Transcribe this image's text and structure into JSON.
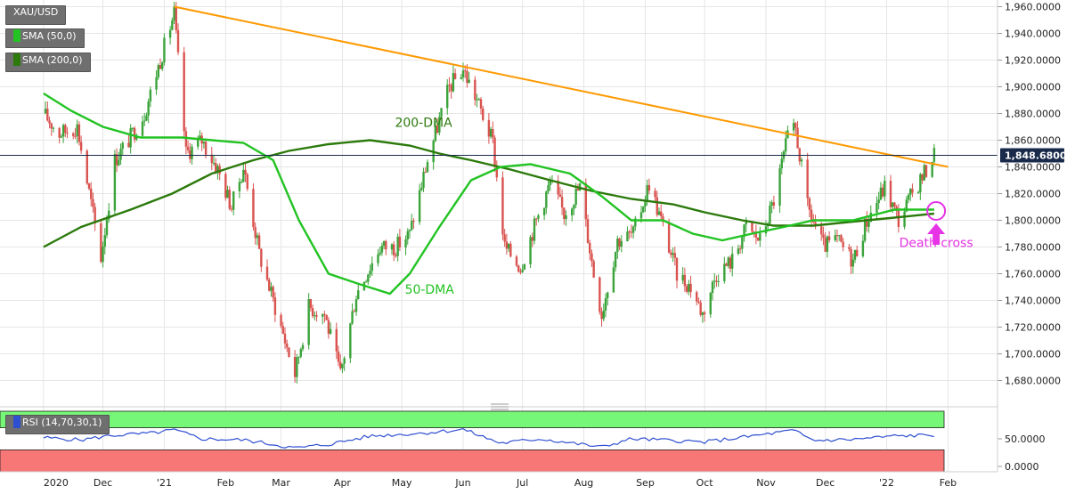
{
  "legend": {
    "symbol": "XAU/USD",
    "sma50": "SMA (50,0)",
    "sma200": "SMA (200,0)",
    "rsi": "RSI (14,70,30,1)"
  },
  "colors": {
    "candle_up": "#3aa33a",
    "candle_down": "#d9534f",
    "sma50": "#22c322",
    "sma200": "#2b7a0b",
    "trendline": "#ff9900",
    "annotation": "#e633e6",
    "rsi_line": "#2f4fd1",
    "rsi_overbought": "#77f777",
    "rsi_oversold": "#f77777",
    "price_tag": "#1a2a4a"
  },
  "chart_data": {
    "type": "candlestick",
    "title": "",
    "price_axis": {
      "range": [
        1665,
        1965
      ],
      "ticks": [
        1680,
        1700,
        1720,
        1740,
        1760,
        1780,
        1800,
        1820,
        1840,
        1860,
        1880,
        1900,
        1920,
        1940,
        1960
      ],
      "tick_labels": [
        "1,680.0000",
        "1,700.0000",
        "1,720.0000",
        "1,740.0000",
        "1,760.0000",
        "1,780.0000",
        "1,800.0000",
        "1,820.0000",
        "1,840.0000",
        "1,860.0000",
        "1,880.0000",
        "1,900.0000",
        "1,920.0000",
        "1,940.0000",
        "1,960.0000"
      ]
    },
    "time_axis": {
      "labels": [
        "2020",
        "Dec",
        "'21",
        "Feb",
        "Mar",
        "Apr",
        "May",
        "Jun",
        "Jul",
        "Aug",
        "Sep",
        "Oct",
        "Nov",
        "Dec",
        "'22",
        "Feb"
      ],
      "dates": [
        "2020-11-01",
        "2020-12-01",
        "2021-01-01",
        "2021-02-01",
        "2021-03-01",
        "2021-04-01",
        "2021-05-01",
        "2021-06-01",
        "2021-07-01",
        "2021-08-01",
        "2021-09-01",
        "2021-10-01",
        "2021-11-01",
        "2021-12-01",
        "2022-01-01",
        "2022-02-01"
      ]
    },
    "current_price": 1848.68,
    "current_price_label": "1,848.6800",
    "price_path": [
      [
        "2020-11-01",
        1880
      ],
      [
        "2020-11-09",
        1865
      ],
      [
        "2020-11-18",
        1870
      ],
      [
        "2020-11-30",
        1772
      ],
      [
        "2020-12-07",
        1845
      ],
      [
        "2020-12-14",
        1860
      ],
      [
        "2020-12-22",
        1880
      ],
      [
        "2021-01-06",
        1955
      ],
      [
        "2021-01-12",
        1850
      ],
      [
        "2021-01-20",
        1860
      ],
      [
        "2021-01-28",
        1838
      ],
      [
        "2021-02-04",
        1810
      ],
      [
        "2021-02-10",
        1840
      ],
      [
        "2021-02-18",
        1775
      ],
      [
        "2021-02-26",
        1735
      ],
      [
        "2021-03-08",
        1685
      ],
      [
        "2021-03-15",
        1735
      ],
      [
        "2021-03-23",
        1730
      ],
      [
        "2021-03-31",
        1684
      ],
      [
        "2021-04-08",
        1745
      ],
      [
        "2021-04-20",
        1780
      ],
      [
        "2021-04-28",
        1780
      ],
      [
        "2021-05-05",
        1790
      ],
      [
        "2021-05-14",
        1845
      ],
      [
        "2021-05-25",
        1900
      ],
      [
        "2021-06-01",
        1913
      ],
      [
        "2021-06-08",
        1890
      ],
      [
        "2021-06-16",
        1858
      ],
      [
        "2021-06-22",
        1780
      ],
      [
        "2021-06-30",
        1765
      ],
      [
        "2021-07-08",
        1800
      ],
      [
        "2021-07-15",
        1828
      ],
      [
        "2021-07-22",
        1805
      ],
      [
        "2021-07-30",
        1825
      ],
      [
        "2021-08-06",
        1760
      ],
      [
        "2021-08-10",
        1730
      ],
      [
        "2021-08-18",
        1785
      ],
      [
        "2021-08-26",
        1790
      ],
      [
        "2021-09-03",
        1828
      ],
      [
        "2021-09-10",
        1795
      ],
      [
        "2021-09-17",
        1760
      ],
      [
        "2021-09-24",
        1750
      ],
      [
        "2021-09-30",
        1730
      ],
      [
        "2021-10-07",
        1760
      ],
      [
        "2021-10-15",
        1770
      ],
      [
        "2021-10-22",
        1795
      ],
      [
        "2021-10-29",
        1785
      ],
      [
        "2021-11-05",
        1815
      ],
      [
        "2021-11-12",
        1862
      ],
      [
        "2021-11-16",
        1868
      ],
      [
        "2021-11-22",
        1810
      ],
      [
        "2021-11-30",
        1780
      ],
      [
        "2021-12-07",
        1785
      ],
      [
        "2021-12-15",
        1770
      ],
      [
        "2021-12-22",
        1800
      ],
      [
        "2021-12-31",
        1825
      ],
      [
        "2022-01-07",
        1800
      ],
      [
        "2022-01-14",
        1820
      ],
      [
        "2022-01-21",
        1838
      ],
      [
        "2022-01-25",
        1850
      ]
    ],
    "series": [
      {
        "name": "200-DMA",
        "points": [
          [
            "2020-11-01",
            1780
          ],
          [
            "2020-11-20",
            1795
          ],
          [
            "2020-12-15",
            1808
          ],
          [
            "2021-01-05",
            1820
          ],
          [
            "2021-01-25",
            1835
          ],
          [
            "2021-02-15",
            1845
          ],
          [
            "2021-03-05",
            1852
          ],
          [
            "2021-03-25",
            1857
          ],
          [
            "2021-04-15",
            1860
          ],
          [
            "2021-05-05",
            1856
          ],
          [
            "2021-05-20",
            1850
          ],
          [
            "2021-06-05",
            1845
          ],
          [
            "2021-06-25",
            1838
          ],
          [
            "2021-07-15",
            1830
          ],
          [
            "2021-08-05",
            1822
          ],
          [
            "2021-08-25",
            1816
          ],
          [
            "2021-09-15",
            1812
          ],
          [
            "2021-10-01",
            1806
          ],
          [
            "2021-10-20",
            1800
          ],
          [
            "2021-11-05",
            1796
          ],
          [
            "2021-11-25",
            1796
          ],
          [
            "2021-12-15",
            1799
          ],
          [
            "2022-01-05",
            1802
          ],
          [
            "2022-01-25",
            1805
          ]
        ]
      },
      {
        "name": "50-DMA",
        "points": [
          [
            "2020-11-01",
            1895
          ],
          [
            "2020-11-15",
            1882
          ],
          [
            "2020-12-01",
            1870
          ],
          [
            "2020-12-20",
            1862
          ],
          [
            "2021-01-10",
            1862
          ],
          [
            "2021-01-25",
            1860
          ],
          [
            "2021-02-10",
            1858
          ],
          [
            "2021-02-25",
            1845
          ],
          [
            "2021-03-10",
            1800
          ],
          [
            "2021-03-25",
            1760
          ],
          [
            "2021-04-10",
            1752
          ],
          [
            "2021-04-25",
            1745
          ],
          [
            "2021-05-05",
            1760
          ],
          [
            "2021-05-20",
            1795
          ],
          [
            "2021-06-05",
            1830
          ],
          [
            "2021-06-20",
            1840
          ],
          [
            "2021-07-05",
            1842
          ],
          [
            "2021-07-25",
            1835
          ],
          [
            "2021-08-10",
            1818
          ],
          [
            "2021-08-25",
            1800
          ],
          [
            "2021-09-10",
            1800
          ],
          [
            "2021-09-25",
            1790
          ],
          [
            "2021-10-10",
            1785
          ],
          [
            "2021-10-25",
            1790
          ],
          [
            "2021-11-10",
            1795
          ],
          [
            "2021-11-25",
            1800
          ],
          [
            "2021-12-15",
            1800
          ],
          [
            "2022-01-05",
            1808
          ],
          [
            "2022-01-25",
            1808
          ]
        ]
      }
    ],
    "trendline": {
      "start": [
        "2021-01-06",
        1960
      ],
      "end": [
        "2022-02-01",
        1840
      ]
    },
    "rsi": {
      "axis_labels": [
        "50.0000",
        "0.0000"
      ],
      "axis_values": [
        50,
        0
      ],
      "overbought": 70,
      "oversold": 30,
      "points": [
        [
          "2020-11-01",
          52
        ],
        [
          "2020-11-20",
          48
        ],
        [
          "2020-12-05",
          56
        ],
        [
          "2020-12-25",
          60
        ],
        [
          "2021-01-06",
          66
        ],
        [
          "2021-01-20",
          50
        ],
        [
          "2021-02-10",
          48
        ],
        [
          "2021-02-25",
          40
        ],
        [
          "2021-03-08",
          33
        ],
        [
          "2021-03-25",
          40
        ],
        [
          "2021-04-15",
          55
        ],
        [
          "2021-05-10",
          60
        ],
        [
          "2021-06-01",
          67
        ],
        [
          "2021-06-20",
          42
        ],
        [
          "2021-07-10",
          50
        ],
        [
          "2021-08-10",
          35
        ],
        [
          "2021-08-25",
          50
        ],
        [
          "2021-09-15",
          47
        ],
        [
          "2021-10-01",
          44
        ],
        [
          "2021-10-25",
          55
        ],
        [
          "2021-11-15",
          65
        ],
        [
          "2021-11-25",
          47
        ],
        [
          "2021-12-15",
          49
        ],
        [
          "2022-01-05",
          55
        ],
        [
          "2022-01-25",
          57
        ]
      ]
    },
    "annotations": [
      {
        "text": "200-DMA",
        "date": "2021-05-12",
        "price": 1870
      },
      {
        "text": "50-DMA",
        "date": "2021-05-15",
        "price": 1745
      },
      {
        "text": "Death cross",
        "date": "2022-01-26",
        "price": 1780
      }
    ],
    "death_cross_point": [
      "2022-01-26",
      1807
    ]
  }
}
